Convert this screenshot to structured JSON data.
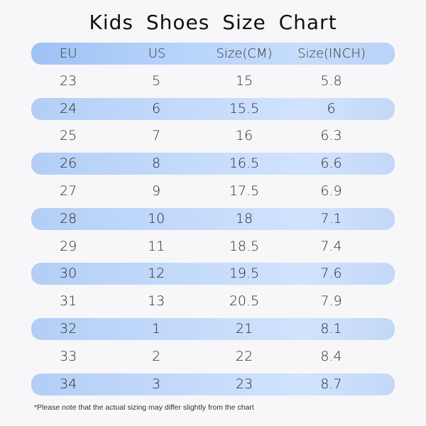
{
  "title": "Kids Shoes Size Chart",
  "header": {
    "eu": "EU",
    "us": "US",
    "cm": "Size(CM)",
    "inch": "Size(INCH)"
  },
  "rows": [
    {
      "eu": "23",
      "us": "5",
      "cm": "15",
      "inch": "5.8"
    },
    {
      "eu": "24",
      "us": "6",
      "cm": "15.5",
      "inch": "6"
    },
    {
      "eu": "25",
      "us": "7",
      "cm": "16",
      "inch": "6.3"
    },
    {
      "eu": "26",
      "us": "8",
      "cm": "16.5",
      "inch": "6.6"
    },
    {
      "eu": "27",
      "us": "9",
      "cm": "17.5",
      "inch": "6.9"
    },
    {
      "eu": "28",
      "us": "10",
      "cm": "18",
      "inch": "7.1"
    },
    {
      "eu": "29",
      "us": "11",
      "cm": "18.5",
      "inch": "7.4"
    },
    {
      "eu": "30",
      "us": "12",
      "cm": "19.5",
      "inch": "7.6"
    },
    {
      "eu": "31",
      "us": "13",
      "cm": "20.5",
      "inch": "7.9"
    },
    {
      "eu": "32",
      "us": "1",
      "cm": "21",
      "inch": "8.1"
    },
    {
      "eu": "33",
      "us": "2",
      "cm": "22",
      "inch": "8.4"
    },
    {
      "eu": "34",
      "us": "3",
      "cm": "23",
      "inch": "8.7"
    }
  ],
  "note": "*Please note that the actual sizing may differ slightly from the chart",
  "colors": {
    "background": "#f7f7f9",
    "header_band": "#b7d3fa",
    "row_band": "#c5dbfb",
    "text": "#2b2b2b"
  }
}
